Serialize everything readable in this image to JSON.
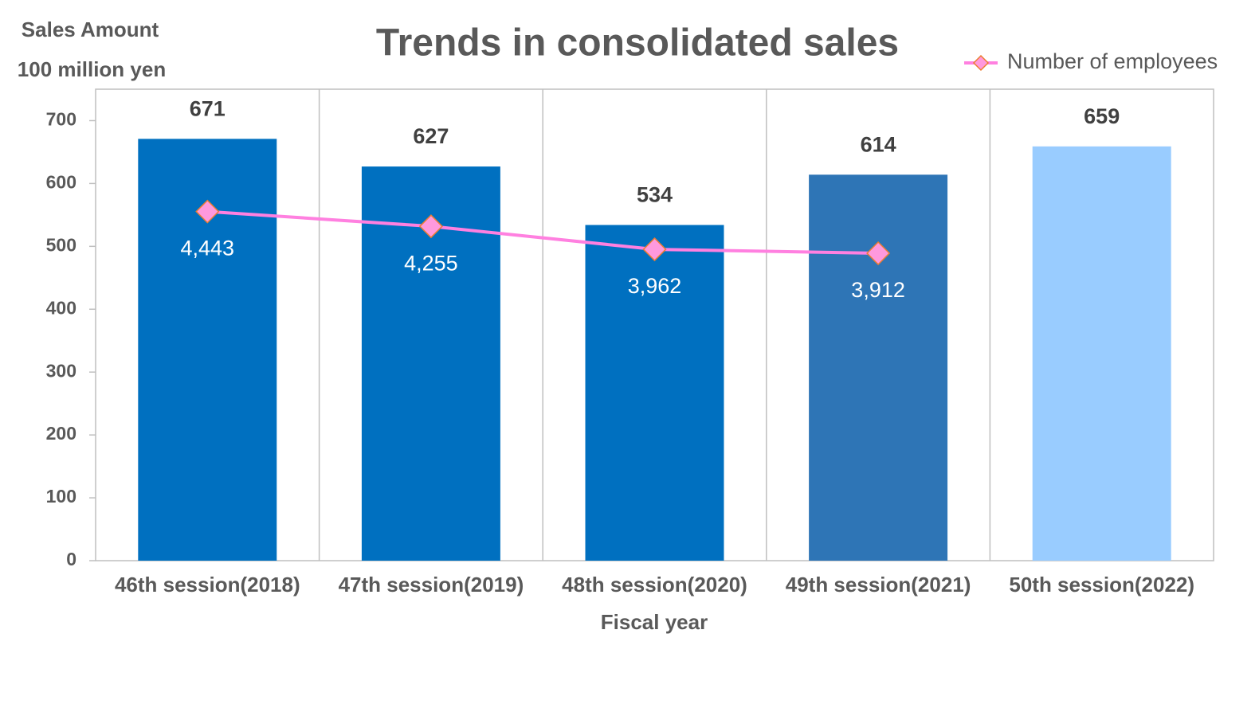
{
  "chart_data": {
    "type": "bar",
    "title": "Trends in consolidated sales",
    "y_label": [
      "Sales Amount",
      "100 million yen"
    ],
    "x_label": "Fiscal year",
    "categories": [
      "46th session(2018)",
      "47th session(2019)",
      "48th session(2020)",
      "49th session(2021)",
      "50th session(2022)"
    ],
    "series": [
      {
        "type": "bar",
        "colors": [
          "#0070c0",
          "#0070c0",
          "#0070c0",
          "#2e75b6",
          "#99ccff"
        ],
        "values": [
          671,
          627,
          534,
          614,
          659
        ]
      },
      {
        "type": "line",
        "name": "Number of employees",
        "color": "#ff80e0",
        "marker_color": "#ff99dd",
        "axis": "y2",
        "values": [
          4443,
          4255,
          3962,
          3912,
          null
        ],
        "value_labels": [
          "4,443",
          "4,255",
          "3,962",
          "3,912",
          null
        ]
      }
    ],
    "ylim": [
      0,
      750
    ],
    "yticks": [
      0,
      100,
      200,
      300,
      400,
      500,
      600,
      700
    ],
    "y2lim": [
      0,
      6000
    ],
    "legend": "top-right",
    "grid": "vertical"
  }
}
